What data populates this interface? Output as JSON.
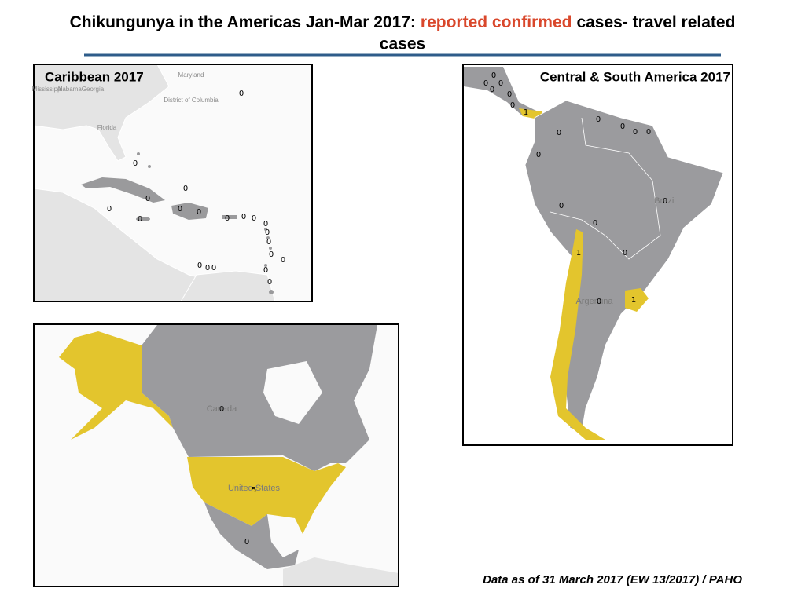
{
  "title": {
    "prefix": "Chikungunya in the Americas Jan-Mar 2017:",
    "highlight": "reported confirmed",
    "suffix": "cases- travel related",
    "line2": "cases"
  },
  "caribbean": {
    "label": "Caribbean 2017",
    "places": [
      "Maryland",
      "District of Columbia",
      "Mississippi",
      "Alabama",
      "Georgia",
      "Florida"
    ],
    "counts": [
      0,
      0,
      0,
      0,
      0,
      0,
      0,
      0,
      0,
      0,
      0,
      0,
      0,
      0,
      0,
      0,
      0,
      0,
      0,
      0,
      0
    ]
  },
  "south_america": {
    "label": "Central & South America  2017",
    "places": [
      "Brazil",
      "Argentina"
    ],
    "counts": [
      0,
      0,
      0,
      0,
      0,
      0,
      1,
      0,
      0,
      0,
      0,
      0,
      0,
      0,
      0,
      0,
      1,
      0,
      0,
      1
    ]
  },
  "north_america": {
    "places": [
      "Canada",
      "United States"
    ],
    "counts": [
      0,
      5,
      0
    ]
  },
  "footer": "Data as of 31 March 2017 (EW 13/2017) / PAHO"
}
